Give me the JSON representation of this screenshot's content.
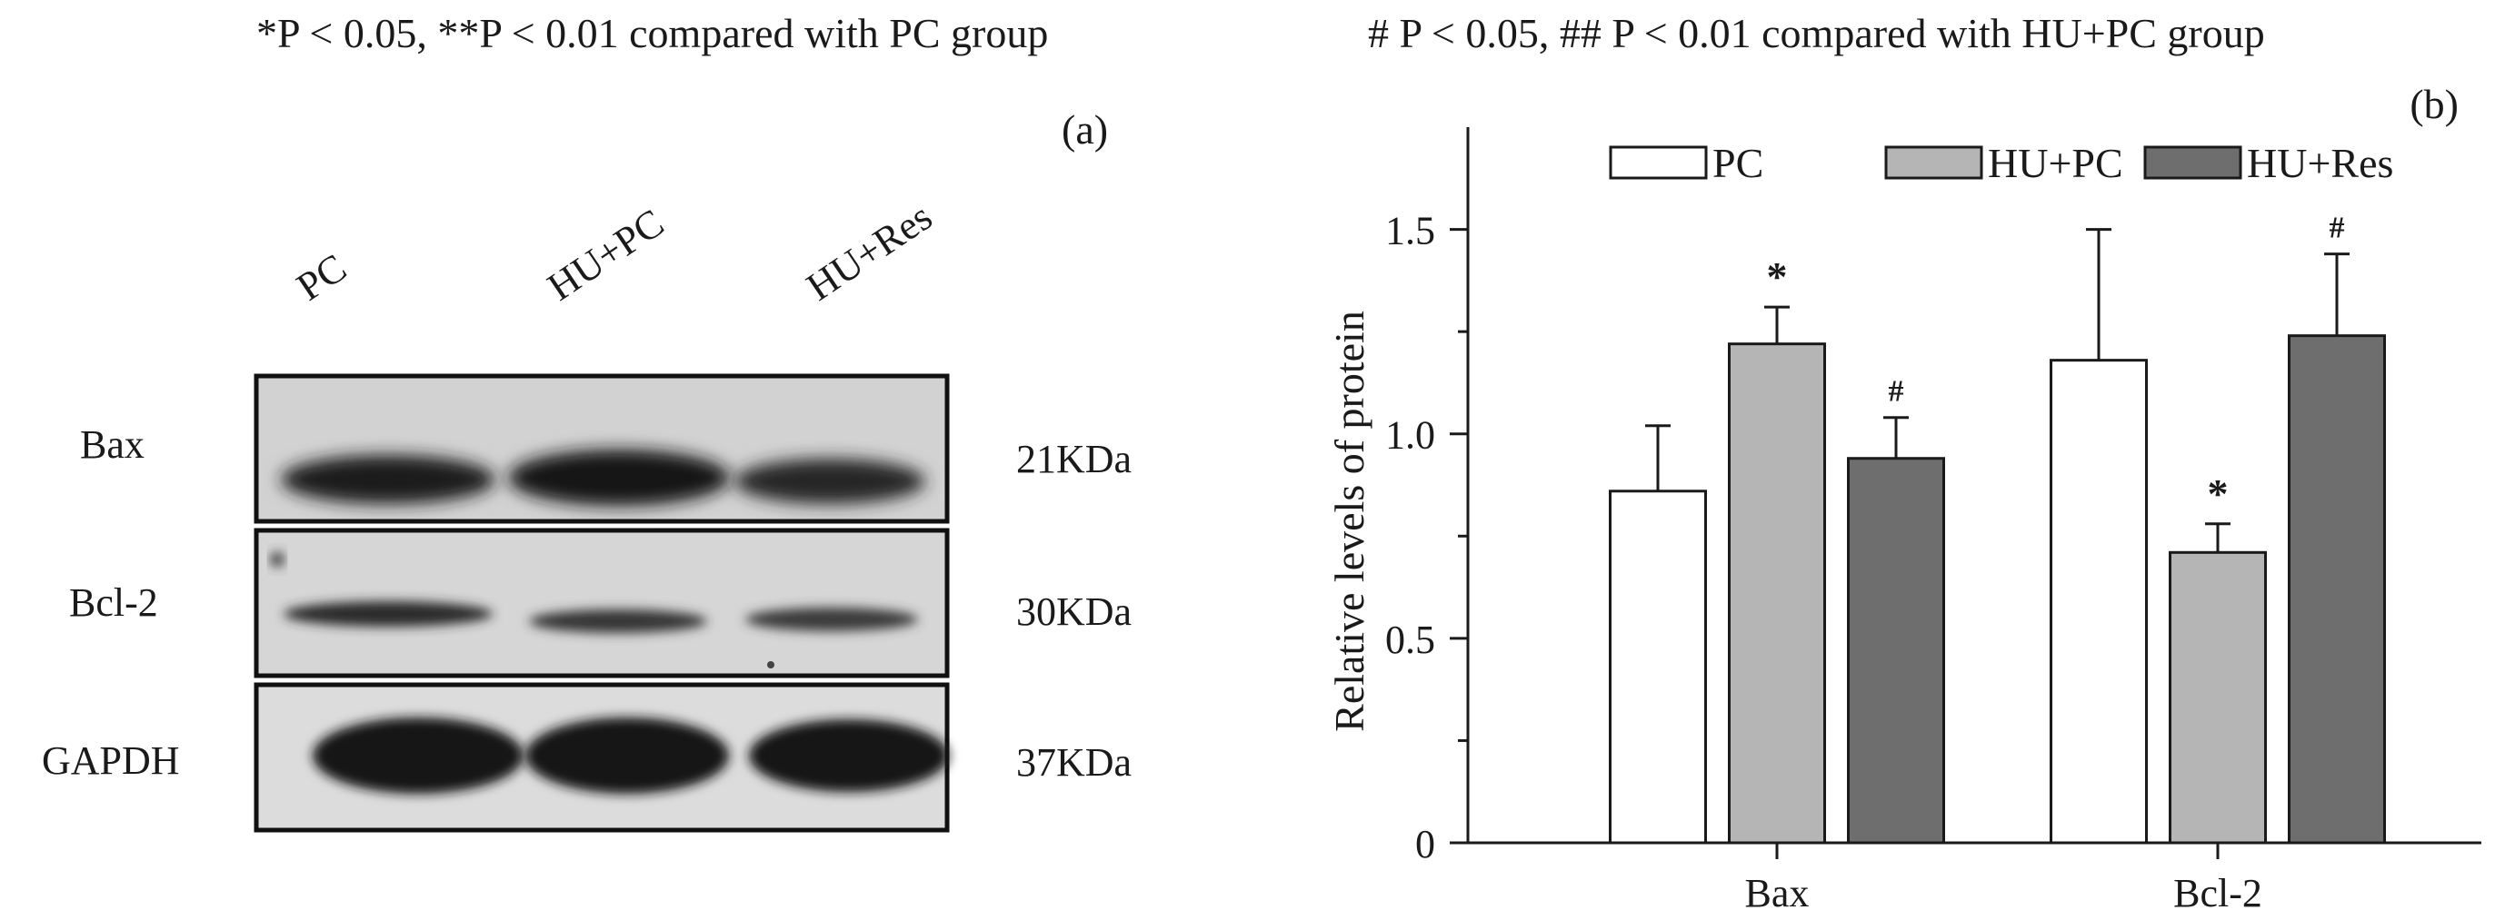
{
  "notes": {
    "left": "*P < 0.05,  **P < 0.01 compared with PC group",
    "right": "# P < 0.05,  ## P < 0.01 compared with HU+PC group"
  },
  "panel_a": {
    "label": "(a)",
    "lanes": [
      "PC",
      "HU+PC",
      "HU+Res"
    ],
    "rows": [
      {
        "name": "Bax",
        "size": "21KDa"
      },
      {
        "name": "Bcl-2",
        "size": "30KDa"
      },
      {
        "name": "GAPDH",
        "size": "37KDa"
      }
    ]
  },
  "chart_data": {
    "type": "bar",
    "panel_label": "(b)",
    "categories": [
      "Bax",
      "Bcl-2"
    ],
    "ylabel": "Relative levels of protein",
    "xlabel": "",
    "ylim": [
      0,
      1.75
    ],
    "yticks": [
      0,
      0.5,
      1.0,
      1.5
    ],
    "ytick_labels": [
      "0",
      "0.5",
      "1.0",
      "1.5"
    ],
    "legend_position": "top",
    "series": [
      {
        "name": "PC",
        "color": "#ffffff",
        "values": [
          0.86,
          1.18
        ],
        "errors": [
          0.16,
          0.32
        ],
        "marks": [
          "",
          ""
        ]
      },
      {
        "name": "HU+PC",
        "color": "#b5b5b5",
        "values": [
          1.22,
          0.71
        ],
        "errors": [
          0.09,
          0.07
        ],
        "marks": [
          "*",
          "*"
        ]
      },
      {
        "name": "HU+Res",
        "color": "#6e6e6e",
        "values": [
          0.94,
          1.24
        ],
        "errors": [
          0.1,
          0.2
        ],
        "marks": [
          "#",
          "#"
        ]
      }
    ]
  }
}
